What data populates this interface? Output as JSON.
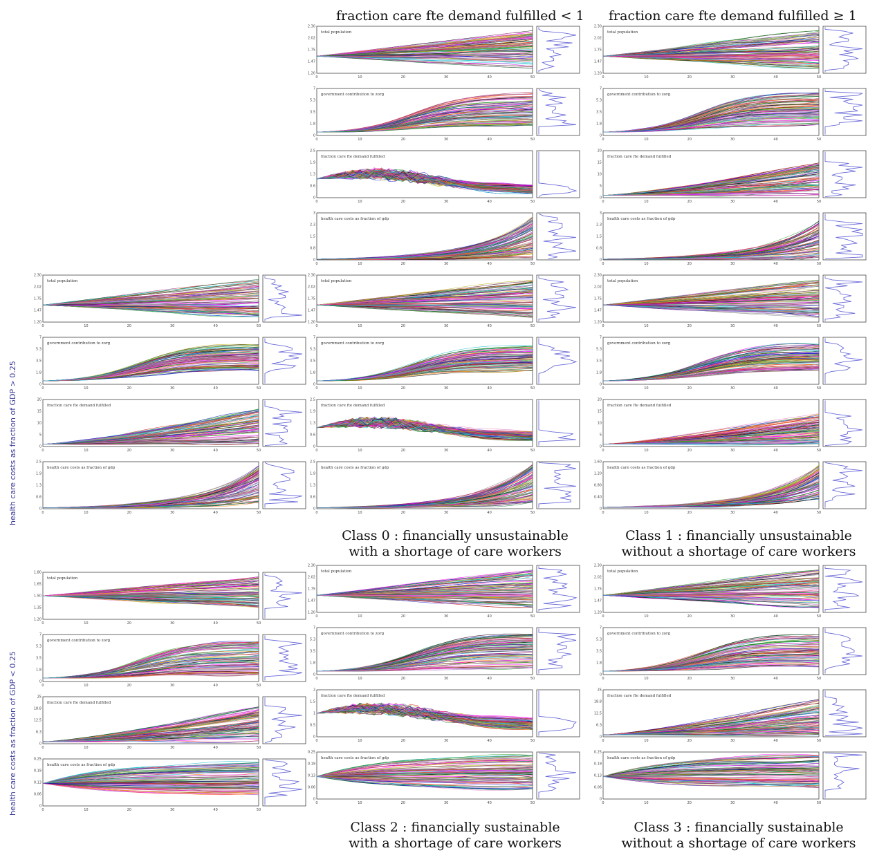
{
  "column_headers": [
    "fraction care fte demand fulfilled < 1",
    "fraction care fte demand fulfilled ≥ 1"
  ],
  "row_labels": [
    "health care costs as fraction of GDP > 0.25",
    "health care costs as fraction of GDP < 0.25"
  ],
  "class_captions": [
    {
      "line1": "Class 0 : financially unsustainable",
      "line2": "with a shortage of care workers"
    },
    {
      "line1": "Class 1 : financially unsustainable",
      "line2": "without a shortage of care workers"
    },
    {
      "line1": "Class 2 : financially sustainable",
      "line2": "with a shortage of care workers"
    },
    {
      "line1": "Class 3 : financially sustainable",
      "line2": "without a shortage of care workers"
    }
  ],
  "variables": [
    "total population",
    "government contribution to zorg",
    "fraction care fte demand fulfilled",
    "health care costs as fraction of gdp"
  ],
  "chart_data": {
    "type": "line",
    "title": "",
    "xlabel": "",
    "x_ticks": [
      "0",
      "10",
      "20",
      "30",
      "40",
      "50"
    ],
    "xlim": [
      0,
      50
    ],
    "groups": [
      {
        "name": "fraction care fte demand fulfilled < 1",
        "panels": [
          {
            "variable": "total population",
            "ylim": [
              1.2,
              2.3
            ],
            "start": 1.6,
            "end_range": [
              1.3,
              2.2
            ],
            "shape": "linear"
          },
          {
            "variable": "government contribution to zorg",
            "ylim": [
              0,
              7
            ],
            "start": 0.5,
            "end_range": [
              1.5,
              6.5
            ],
            "shape": "sigmoid"
          },
          {
            "variable": "fraction care fte demand fulfilled",
            "ylim": [
              0,
              2.5
            ],
            "start": 1.0,
            "end_range": [
              0.2,
              0.7
            ],
            "shape": "hump"
          },
          {
            "variable": "health care costs as fraction of gdp",
            "ylim": [
              0,
              3.0
            ],
            "start": 0.05,
            "end_range": [
              0.1,
              2.8
            ],
            "shape": "exp"
          }
        ]
      },
      {
        "name": "fraction care fte demand fulfilled ≥ 1",
        "panels": [
          {
            "variable": "total population",
            "ylim": [
              1.2,
              2.3
            ],
            "start": 1.6,
            "end_range": [
              1.3,
              2.2
            ],
            "shape": "linear"
          },
          {
            "variable": "government contribution to zorg",
            "ylim": [
              0,
              7
            ],
            "start": 0.5,
            "end_range": [
              1.5,
              6.5
            ],
            "shape": "sigmoid"
          },
          {
            "variable": "fraction care fte demand fulfilled",
            "ylim": [
              0,
              20
            ],
            "start": 1.0,
            "end_range": [
              1.0,
              15
            ],
            "shape": "rise"
          },
          {
            "variable": "health care costs as fraction of gdp",
            "ylim": [
              0,
              3.0
            ],
            "start": 0.05,
            "end_range": [
              0.1,
              2.5
            ],
            "shape": "exp"
          }
        ]
      },
      {
        "name": "Class 0",
        "panels": [
          {
            "variable": "total population",
            "ylim": [
              1.2,
              2.3
            ],
            "start": 1.6,
            "end_range": [
              1.3,
              2.2
            ],
            "shape": "linear"
          },
          {
            "variable": "government contribution to zorg",
            "ylim": [
              0,
              7
            ],
            "start": 0.5,
            "end_range": [
              2.0,
              6.0
            ],
            "shape": "sigmoid"
          },
          {
            "variable": "fraction care fte demand fulfilled",
            "ylim": [
              0,
              2.5
            ],
            "start": 1.0,
            "end_range": [
              0.3,
              0.8
            ],
            "shape": "hump"
          },
          {
            "variable": "health care costs as fraction of gdp",
            "ylim": [
              0,
              2.5
            ],
            "start": 0.05,
            "end_range": [
              0.3,
              2.4
            ],
            "shape": "exp"
          }
        ]
      },
      {
        "name": "Class 1",
        "panels": [
          {
            "variable": "total population",
            "ylim": [
              1.2,
              2.3
            ],
            "start": 1.6,
            "end_range": [
              1.3,
              2.2
            ],
            "shape": "linear"
          },
          {
            "variable": "government contribution to zorg",
            "ylim": [
              0,
              7
            ],
            "start": 0.5,
            "end_range": [
              2.0,
              6.0
            ],
            "shape": "sigmoid"
          },
          {
            "variable": "fraction care fte demand fulfilled",
            "ylim": [
              0,
              20
            ],
            "start": 1.0,
            "end_range": [
              1.0,
              14
            ],
            "shape": "rise"
          },
          {
            "variable": "health care costs as fraction of gdp",
            "ylim": [
              0,
              1.6
            ],
            "start": 0.05,
            "end_range": [
              0.3,
              1.5
            ],
            "shape": "exp"
          }
        ]
      },
      {
        "name": "health care costs as fraction of GDP > 0.25",
        "panels": [
          {
            "variable": "total population",
            "ylim": [
              1.2,
              2.3
            ],
            "start": 1.6,
            "end_range": [
              1.3,
              2.2
            ],
            "shape": "linear"
          },
          {
            "variable": "government contribution to zorg",
            "ylim": [
              0,
              7
            ],
            "start": 0.5,
            "end_range": [
              2.0,
              6.0
            ],
            "shape": "sigmoid"
          },
          {
            "variable": "fraction care fte demand fulfilled",
            "ylim": [
              0,
              20
            ],
            "start": 1.0,
            "end_range": [
              1.0,
              16
            ],
            "shape": "rise"
          },
          {
            "variable": "health care costs as fraction of gdp",
            "ylim": [
              0,
              2.5
            ],
            "start": 0.05,
            "end_range": [
              0.3,
              2.4
            ],
            "shape": "exp"
          }
        ]
      },
      {
        "name": "health care costs as fraction of GDP < 0.25",
        "panels": [
          {
            "variable": "total population",
            "ylim": [
              1.2,
              1.8
            ],
            "start": 1.5,
            "end_range": [
              1.35,
              1.75
            ],
            "shape": "linear"
          },
          {
            "variable": "government contribution to zorg",
            "ylim": [
              0,
              7
            ],
            "start": 0.5,
            "end_range": [
              1.0,
              6.0
            ],
            "shape": "sigmoid"
          },
          {
            "variable": "fraction care fte demand fulfilled",
            "ylim": [
              0,
              25
            ],
            "start": 1.0,
            "end_range": [
              1.0,
              20
            ],
            "shape": "rise"
          },
          {
            "variable": "health care costs as fraction of gdp",
            "ylim": [
              0,
              0.25
            ],
            "start": 0.12,
            "end_range": [
              0.05,
              0.24
            ],
            "shape": "spread"
          }
        ]
      },
      {
        "name": "Class 2",
        "panels": [
          {
            "variable": "total population",
            "ylim": [
              1.2,
              2.3
            ],
            "start": 1.6,
            "end_range": [
              1.3,
              2.2
            ],
            "shape": "linear"
          },
          {
            "variable": "government contribution to zorg",
            "ylim": [
              0,
              7
            ],
            "start": 0.5,
            "end_range": [
              1.0,
              6.0
            ],
            "shape": "sigmoid"
          },
          {
            "variable": "fraction care fte demand fulfilled",
            "ylim": [
              0,
              2.0
            ],
            "start": 1.0,
            "end_range": [
              0.3,
              0.8
            ],
            "shape": "hump"
          },
          {
            "variable": "health care costs as fraction of gdp",
            "ylim": [
              0,
              0.25
            ],
            "start": 0.12,
            "end_range": [
              0.05,
              0.24
            ],
            "shape": "spread"
          }
        ]
      },
      {
        "name": "Class 3",
        "panels": [
          {
            "variable": "total population",
            "ylim": [
              1.2,
              2.3
            ],
            "start": 1.6,
            "end_range": [
              1.3,
              2.2
            ],
            "shape": "linear"
          },
          {
            "variable": "government contribution to zorg",
            "ylim": [
              0,
              7
            ],
            "start": 0.5,
            "end_range": [
              1.0,
              6.0
            ],
            "shape": "sigmoid"
          },
          {
            "variable": "fraction care fte demand fulfilled",
            "ylim": [
              0,
              25
            ],
            "start": 1.0,
            "end_range": [
              1.0,
              20
            ],
            "shape": "rise"
          },
          {
            "variable": "health care costs as fraction of gdp",
            "ylim": [
              0,
              0.25
            ],
            "start": 0.12,
            "end_range": [
              0.05,
              0.24
            ],
            "shape": "spread"
          }
        ]
      }
    ],
    "line_colors": [
      "#d62728",
      "#1f1fd0",
      "#2ca02c",
      "#9467bd",
      "#e377c2",
      "#17becf",
      "#ff7f0e",
      "#111111",
      "#8c564b",
      "#bcbd22",
      "#7f7f7f",
      "#aa3377",
      "#006d2c",
      "#ff00ff"
    ],
    "histogram_color": "#6a6ad8"
  }
}
